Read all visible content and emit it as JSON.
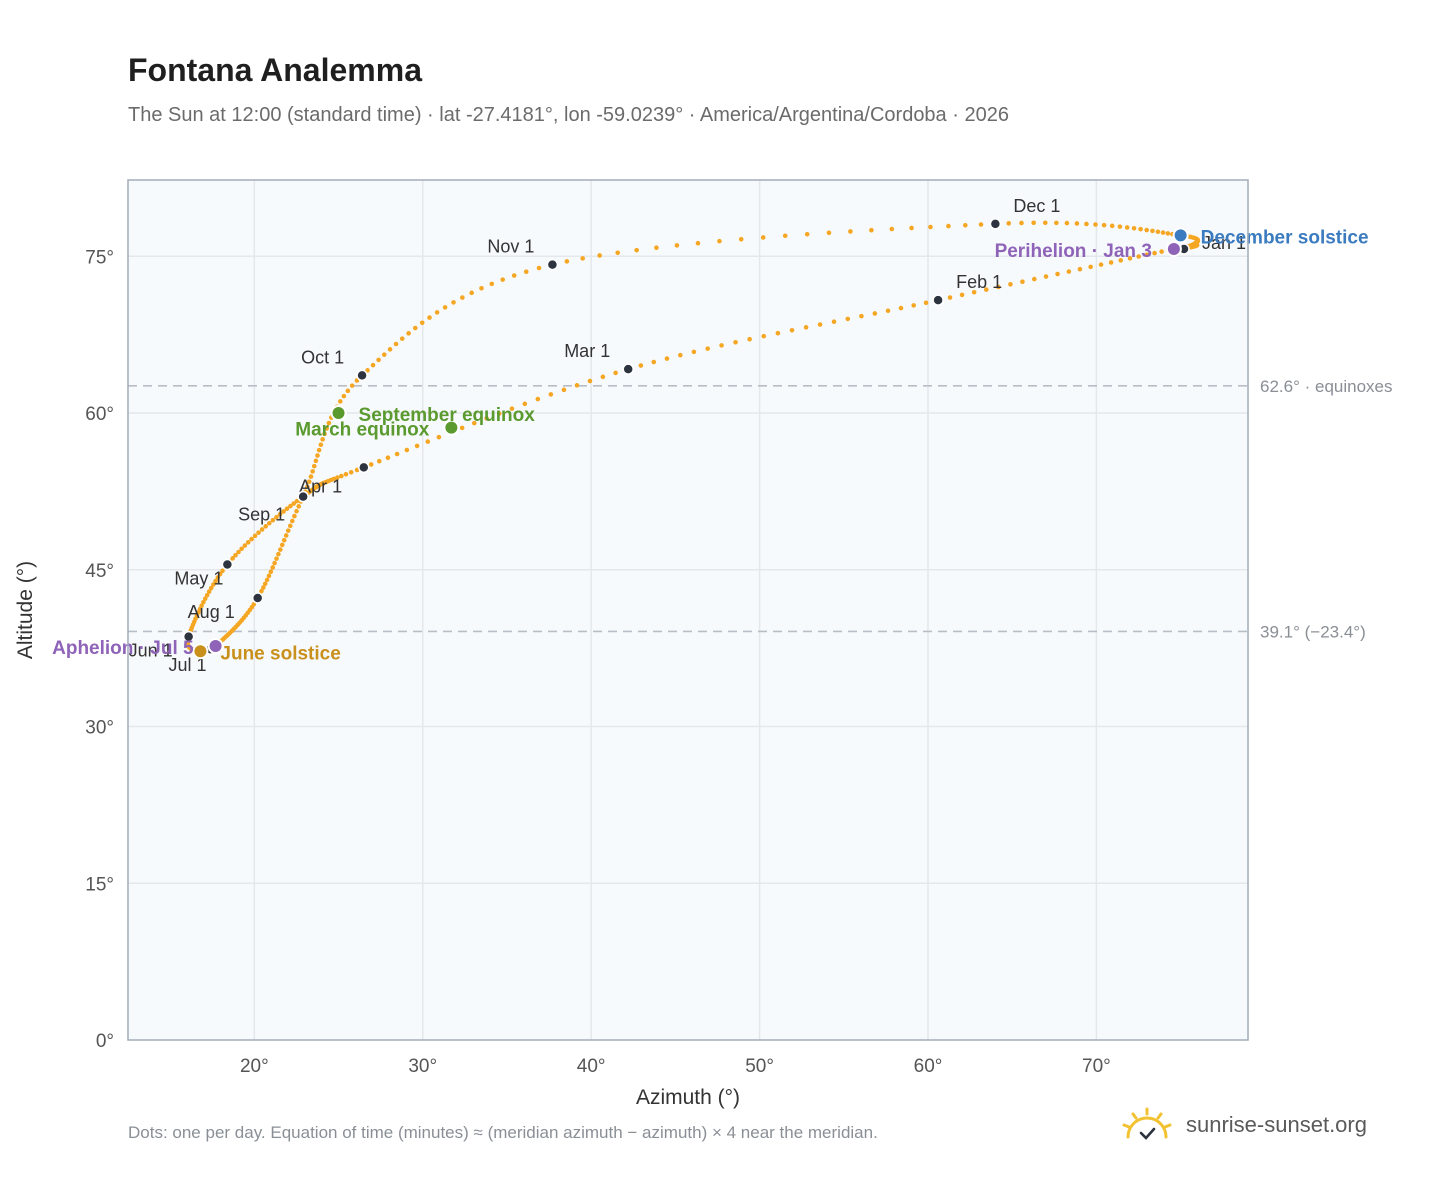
{
  "title": "Fontana Analemma",
  "subtitle": "The Sun at 12:00 (standard time) · lat -27.4181°, lon -59.0239° · America/Argentina/Cordoba · 2026",
  "footnote": "Dots: one per day. Equation of time (minutes) ≈ (meridian azimuth − azimuth) × 4 near the meridian.",
  "brand": "sunrise-sunset.org",
  "colors": {
    "analemma": "#f5a623",
    "month_dot": "#2d3440",
    "equinox": "#5a9a2f",
    "june_solstice": "#c9901c",
    "december_solstice": "#3b7bbf",
    "apsis": "#8e63b8",
    "grid": "#e4e8ec",
    "plot_bg": "#f7fafd",
    "axis_border": "#a3acb8",
    "ref_line": "#b8bec6"
  },
  "chart_data": {
    "type": "scatter",
    "xlabel": "Azimuth (°)",
    "ylabel": "Altitude (°)",
    "xlim": [
      12.5,
      79
    ],
    "ylim": [
      0,
      82.3
    ],
    "xticks": [
      20,
      30,
      40,
      50,
      60,
      70
    ],
    "xtick_labels": [
      "20°",
      "30°",
      "40°",
      "50°",
      "60°",
      "70°"
    ],
    "yticks": [
      0,
      15,
      30,
      45,
      60,
      75
    ],
    "ytick_labels": [
      "0°",
      "15°",
      "30°",
      "45°",
      "60°",
      "75°"
    ],
    "grid": true,
    "analemma_path": [
      [
        75.5,
        75.9
      ],
      [
        74.6,
        75.7
      ],
      [
        60.6,
        70.8
      ],
      [
        42.2,
        64.2
      ],
      [
        26.5,
        54.8
      ],
      [
        22.9,
        52.0
      ],
      [
        18.4,
        45.5
      ],
      [
        16.1,
        38.6
      ],
      [
        16.8,
        37.2
      ],
      [
        17.7,
        37.7
      ],
      [
        20.2,
        42.3
      ],
      [
        22.9,
        52.0
      ],
      [
        26.4,
        63.6
      ],
      [
        37.7,
        74.2
      ],
      [
        64.0,
        78.1
      ],
      [
        75.0,
        77.0
      ],
      [
        75.5,
        75.9
      ]
    ],
    "month_markers": [
      {
        "label": "Jan 1",
        "x": 75.2,
        "y": 75.7
      },
      {
        "label": "Feb 1",
        "x": 60.6,
        "y": 70.8
      },
      {
        "label": "Mar 1",
        "x": 42.2,
        "y": 64.2
      },
      {
        "label": "",
        "x": 26.5,
        "y": 54.8
      },
      {
        "label": "Apr 1",
        "x": 22.9,
        "y": 52.0
      },
      {
        "label": "May 1",
        "x": 18.4,
        "y": 45.5
      },
      {
        "label": "Jun 1",
        "x": 16.1,
        "y": 38.6
      },
      {
        "label": "Jul 1",
        "x": 17.4,
        "y": 37.4
      },
      {
        "label": "Aug 1",
        "x": 20.2,
        "y": 42.3
      },
      {
        "label": "Sep 1",
        "x": 22.9,
        "y": 52.0
      },
      {
        "label": "Oct 1",
        "x": 26.4,
        "y": 63.6
      },
      {
        "label": "Nov 1",
        "x": 37.7,
        "y": 74.2
      },
      {
        "label": "Dec 1",
        "x": 64.0,
        "y": 78.1
      }
    ],
    "events": [
      {
        "label": "March equinox",
        "x": 31.7,
        "y": 58.6,
        "color_key": "equinox"
      },
      {
        "label": "September equinox",
        "x": 25.0,
        "y": 60.0,
        "color_key": "equinox"
      },
      {
        "label": "June solstice",
        "x": 16.8,
        "y": 37.2,
        "color_key": "june_solstice"
      },
      {
        "label": "December solstice",
        "x": 75.0,
        "y": 77.0,
        "color_key": "december_solstice"
      },
      {
        "label": "Aphelion · Jul 5",
        "x": 17.7,
        "y": 37.7,
        "color_key": "apsis"
      },
      {
        "label": "Perihelion · Jan 3",
        "x": 74.6,
        "y": 75.7,
        "color_key": "apsis"
      }
    ],
    "reference_lines": [
      {
        "y": 62.6,
        "label": "62.6° · equinoxes"
      },
      {
        "y": 39.1,
        "label": "39.1° (−23.4°)"
      }
    ]
  }
}
